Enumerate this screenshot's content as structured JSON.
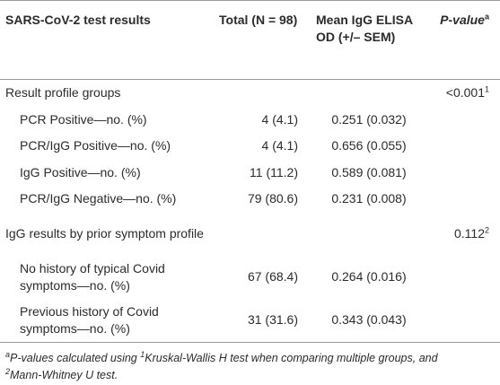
{
  "table": {
    "header": [
      {
        "text": "SARS-CoV-2 test results"
      },
      {
        "text": "Total (N = 98)"
      },
      {
        "text": "Mean IgG ELISA OD (+/– SEM)"
      },
      {
        "text": "P-value",
        "sup": "a"
      }
    ],
    "groups": [
      {
        "label": "Result profile groups",
        "p": "<0.001",
        "sup": "1",
        "rows": [
          [
            "PCR Positive—no. (%)",
            "4 (4.1)",
            "0.251 (0.032)"
          ],
          [
            "PCR/IgG Positive—no. (%)",
            "4 (4.1)",
            "0.656 (0.055)"
          ],
          [
            "IgG Positive—no. (%)",
            "11 (11.2)",
            "0.589 (0.081)"
          ],
          [
            "PCR/IgG Negative—no. (%)",
            "79 (80.6)",
            "0.231 (0.008)"
          ]
        ]
      },
      {
        "label": "IgG results by prior symptom profile",
        "p": "0.112",
        "sup": "2",
        "rows": [
          [
            "No history of typical Covid symptoms—no. (%)",
            "67 (68.4)",
            "0.264 (0.016)"
          ],
          [
            "Previous history of Covid symptoms—no. (%)",
            "31 (31.6)",
            "0.343 (0.043)"
          ]
        ]
      }
    ]
  },
  "footnote": [
    "a",
    "P-values calculated using ",
    "1",
    "Kruskal-Wallis H test when comparing multiple groups, and",
    "2",
    "Mann-Whitney U test."
  ]
}
